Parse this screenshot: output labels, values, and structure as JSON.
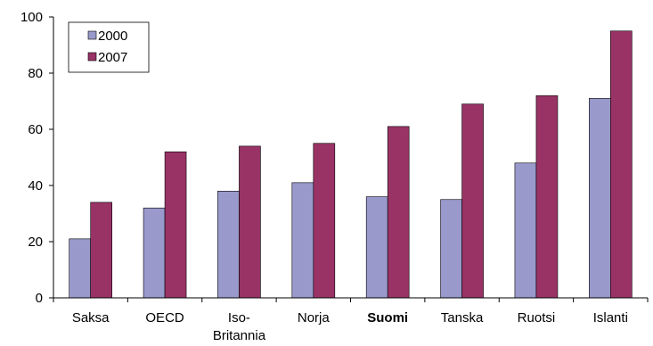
{
  "chart_data": {
    "type": "bar",
    "categories": [
      "Saksa",
      "OECD",
      "Iso-Britannia",
      "Norja",
      "Suomi",
      "Tanska",
      "Ruotsi",
      "Islanti"
    ],
    "category_lines": [
      [
        "Saksa"
      ],
      [
        "OECD"
      ],
      [
        "Iso-",
        "Britannia"
      ],
      [
        "Norja"
      ],
      [
        "Suomi"
      ],
      [
        "Tanska"
      ],
      [
        "Ruotsi"
      ],
      [
        "Islanti"
      ]
    ],
    "highlighted_category": "Suomi",
    "series": [
      {
        "name": "2000",
        "color": "#9999cc",
        "values": [
          21,
          32,
          38,
          41,
          36,
          35,
          48,
          71
        ]
      },
      {
        "name": "2007",
        "color": "#993366",
        "values": [
          34,
          52,
          54,
          55,
          61,
          69,
          72,
          95
        ]
      }
    ],
    "ylim": [
      0,
      100
    ],
    "yticks": [
      0,
      20,
      40,
      60,
      80,
      100
    ],
    "legend_position": "top-left",
    "grid": false
  }
}
